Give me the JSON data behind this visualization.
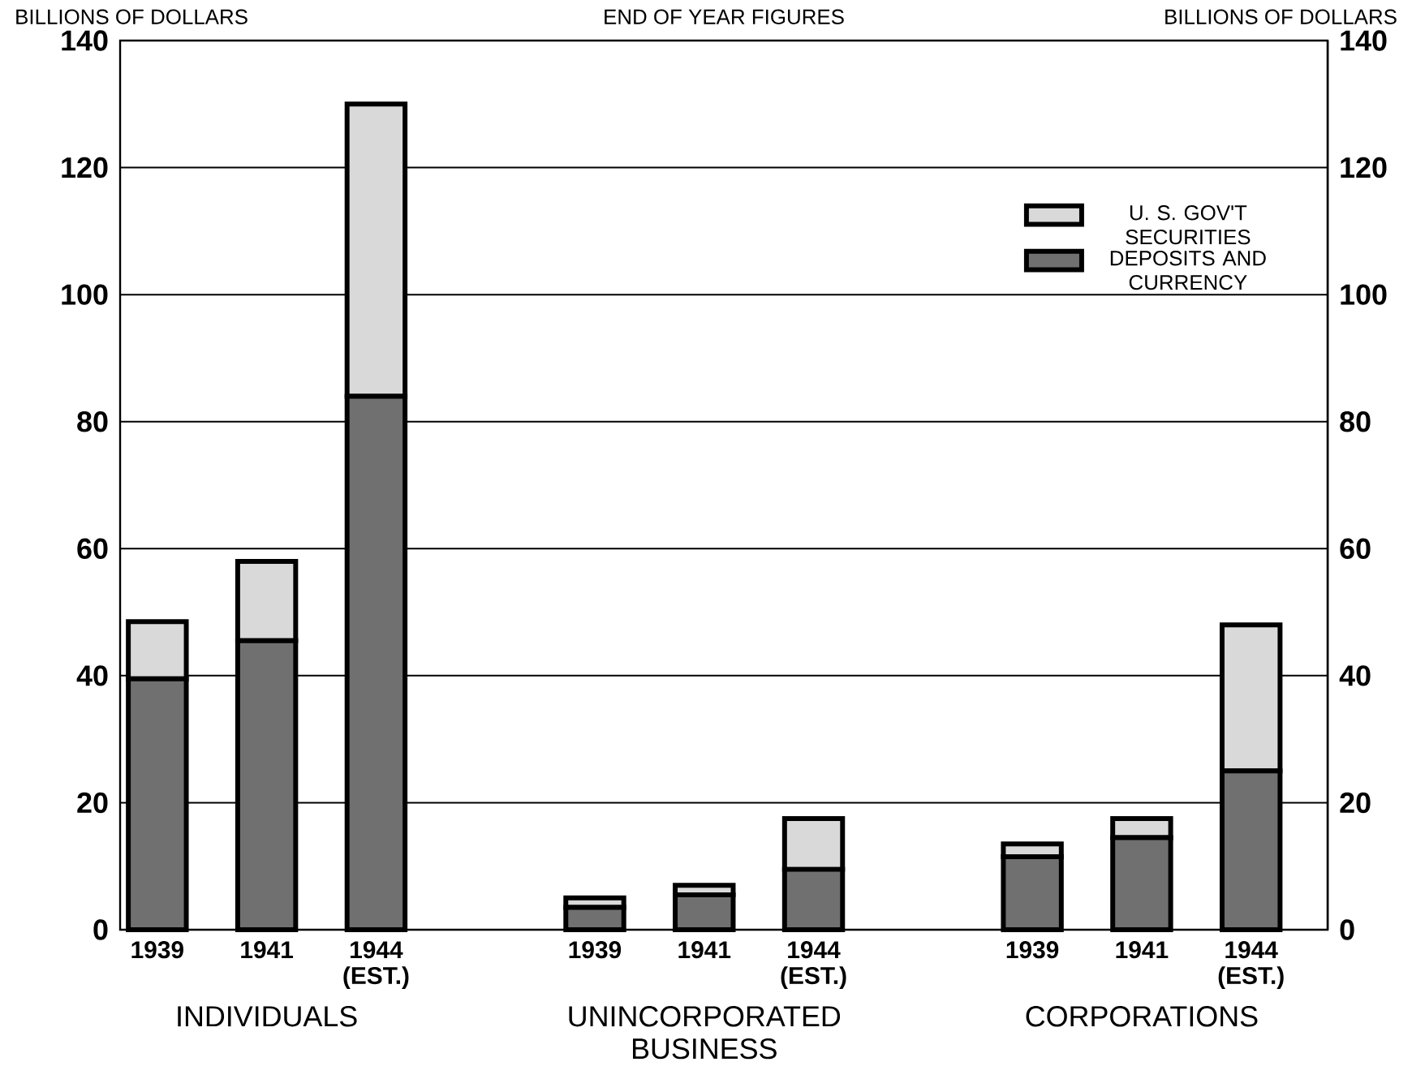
{
  "chart_data": {
    "type": "bar",
    "stacked": true,
    "title": "END OF YEAR FIGURES",
    "ylabel": "BILLIONS OF DOLLARS",
    "y2label": "BILLIONS OF DOLLARS",
    "categories": [
      "1939",
      "1941",
      "1944 (EST.)",
      "1939",
      "1941",
      "1944 (EST.)",
      "1939",
      "1941",
      "1944 (EST.)"
    ],
    "series": [
      {
        "name": "DEPOSITS AND CURRENCY",
        "color": "#707070",
        "values": [
          39.5,
          45.5,
          84,
          3.5,
          5.5,
          9.5,
          11.5,
          14.5,
          25
        ]
      },
      {
        "name": "U. S. GOV'T SECURITIES",
        "color": "#d9d9d9",
        "values": [
          9,
          12.5,
          46,
          1.5,
          1.5,
          8,
          2,
          3,
          23
        ]
      }
    ],
    "ylim": [
      0,
      140
    ],
    "yticks": [
      0,
      20,
      40,
      60,
      80,
      100,
      120,
      140
    ],
    "y2lim": [
      0,
      140
    ],
    "y2ticks": [
      0,
      20,
      40,
      60,
      80,
      100,
      120,
      140
    ],
    "grid": "y",
    "legend": "top right",
    "annotations": [
      "INDIVIDUALS",
      "UNINCORPORATED BUSINESS",
      "CORPORATIONS"
    ]
  }
}
